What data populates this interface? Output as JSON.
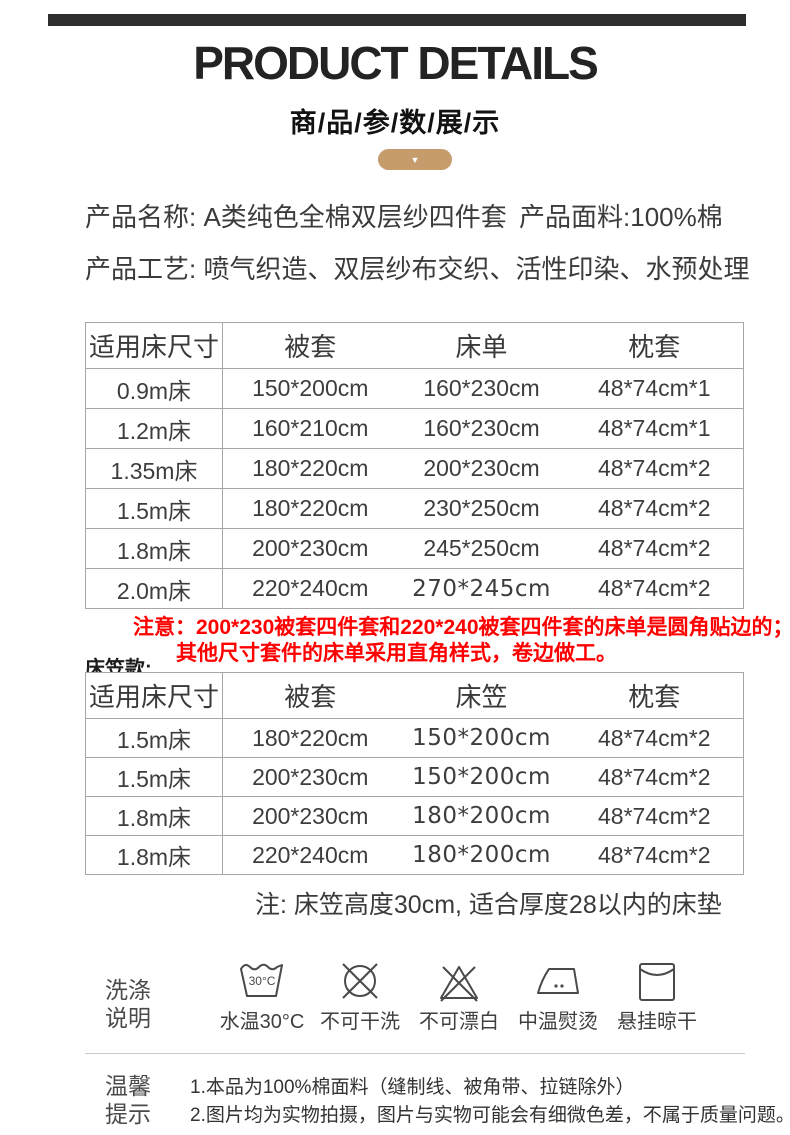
{
  "header": {
    "title": "PRODUCT DETAILS",
    "subtitle": "商/品/参/数/展/示",
    "chevron": "▼"
  },
  "info": {
    "name_label": "产品名称:",
    "name_value": "A类纯色全棉双层纱四件套",
    "fabric_label": "产品面料:",
    "fabric_value": "100%棉",
    "craft_label": "产品工艺:",
    "craft_value": "喷气织造、双层纱布交织、活性印染、水预处理"
  },
  "size_table": {
    "headers": [
      "适用床尺寸",
      "被套",
      "床单",
      "枕套"
    ],
    "rows": [
      [
        "0.9m床",
        "150*200cm",
        "160*230cm",
        "48*74cm*1"
      ],
      [
        "1.2m床",
        "160*210cm",
        "160*230cm",
        "48*74cm*1"
      ],
      [
        "1.35m床",
        "180*220cm",
        "200*230cm",
        "48*74cm*2"
      ],
      [
        "1.5m床",
        "180*220cm",
        "230*250cm",
        "48*74cm*2"
      ],
      [
        "1.8m床",
        "200*230cm",
        "245*250cm",
        "48*74cm*2"
      ],
      [
        "2.0m床",
        "220*240cm",
        "270*245cm",
        "48*74cm*2"
      ]
    ],
    "alt_cells": [
      [
        5,
        2
      ]
    ]
  },
  "notice": {
    "line1": "注意：200*230被套四件套和220*240被套四件套的床单是圆角贴边的；",
    "line2": "其他尺寸套件的床单采用直角样式，卷边做工。"
  },
  "fitted": {
    "label": "床笠款:",
    "note": "注: 床笠高度30cm, 适合厚度28以内的床垫"
  },
  "fitted_table": {
    "headers": [
      "适用床尺寸",
      "被套",
      "床笠",
      "枕套"
    ],
    "rows": [
      [
        "1.5m床",
        "180*220cm",
        "150*200cm",
        "48*74cm*2"
      ],
      [
        "1.5m床",
        "200*230cm",
        "150*200cm",
        "48*74cm*2"
      ],
      [
        "1.8m床",
        "200*230cm",
        "180*200cm",
        "48*74cm*2"
      ],
      [
        "1.8m床",
        "220*240cm",
        "180*200cm",
        "48*74cm*2"
      ]
    ],
    "alt_cells": [
      [
        0,
        2
      ],
      [
        1,
        2
      ],
      [
        2,
        2
      ],
      [
        3,
        2
      ]
    ]
  },
  "washing": {
    "label_line1": "洗涤",
    "label_line2": "说明",
    "items": [
      {
        "icon": "wash-30-icon",
        "inner": "30°C",
        "caption": "水温30°C"
      },
      {
        "icon": "no-dry-clean-icon",
        "inner": "",
        "caption": "不可干洗"
      },
      {
        "icon": "no-bleach-icon",
        "inner": "",
        "caption": "不可漂白"
      },
      {
        "icon": "iron-medium-icon",
        "inner": "",
        "caption": "中温熨烫"
      },
      {
        "icon": "hang-dry-icon",
        "inner": "",
        "caption": "悬挂晾干"
      }
    ]
  },
  "tips": {
    "label_line1": "温馨",
    "label_line2": "提示",
    "line1": "1.本品为100%棉面料（缝制线、被角带、拉链除外）",
    "line2": "2.图片均为实物拍摄，图片与实物可能会有细微色差，不属于质量问题。"
  },
  "colors": {
    "accent_tan": "#c69c6d",
    "top_bar_dark": "#2d2d2d",
    "notice_red": "#ff0000",
    "table_border": "#a6a6a6",
    "text_dark": "#3d3d3d"
  }
}
